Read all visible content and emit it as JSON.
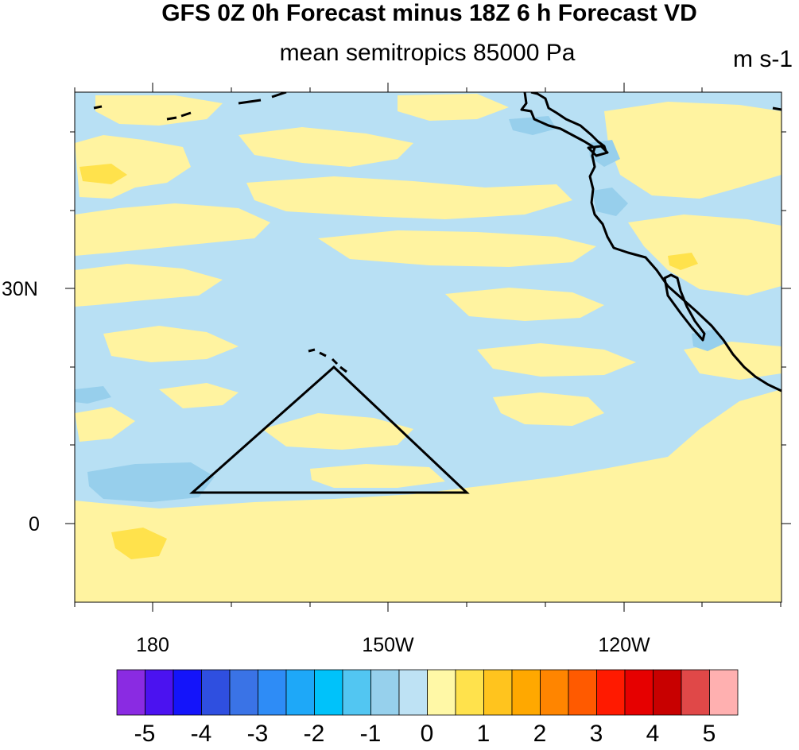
{
  "title": "GFS 0Z 0h Forecast minus 18Z 6 h Forecast VD",
  "subtitle": "mean semitropics 85000 Pa",
  "units": "m s-1",
  "map": {
    "lat_labels": [
      "30N",
      "0"
    ],
    "lon_labels": [
      "180",
      "150W",
      "120W"
    ],
    "colors": {
      "yellow": "#FFF3A0",
      "light_blue": "#B8E0F4",
      "mid_blue": "#97CFEC",
      "coast": "#000000"
    },
    "region_shape": "triangle"
  },
  "colorbar": {
    "colors": [
      "#8A2BE2",
      "#4B12F0",
      "#1414FA",
      "#2F4FE0",
      "#3A73E6",
      "#2E8CF6",
      "#1EA8F8",
      "#00C2FA",
      "#52C6F2",
      "#96D0EC",
      "#BEE2F4",
      "#FFF8A6",
      "#FFE24C",
      "#FFC41E",
      "#FFA800",
      "#FF8500",
      "#FF5A00",
      "#FF1A00",
      "#E60000",
      "#C80000",
      "#E04848",
      "#FFB0B0"
    ],
    "labels": [
      "-5",
      "-4",
      "-3",
      "-2",
      "-1",
      "0",
      "1",
      "2",
      "3",
      "4",
      "5"
    ]
  }
}
